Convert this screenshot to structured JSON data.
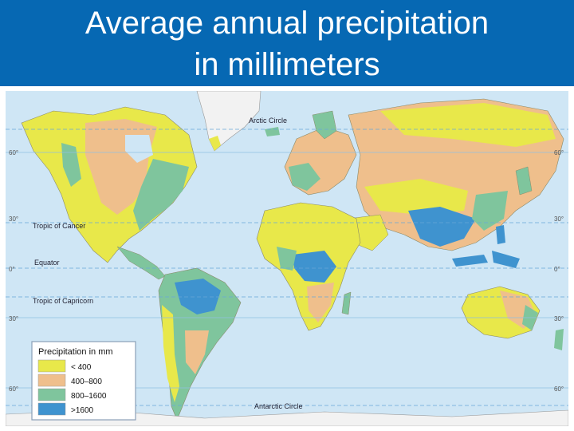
{
  "title": {
    "line1": "Average annual precipitation",
    "line2": "in millimeters"
  },
  "colors": {
    "header": "#0668b3",
    "ocean": "#cfe6f5",
    "under400": "#e8e84a",
    "r400_800": "#efbf8c",
    "r800_1600": "#7fc59d",
    "over1600": "#3f93cf",
    "ice": "#f7f7f7"
  },
  "lines": {
    "arctic": "Arctic Circle",
    "cancer": "Tropic of Cancer",
    "equator": "Equator",
    "capricorn": "Tropic of Capricorn",
    "antarctic": "Antarctic Circle"
  },
  "degrees": {
    "n60": "60°",
    "n30": "30°",
    "eq": "0°",
    "s30": "30°",
    "s60": "60°"
  },
  "legend": {
    "title": "Precipitation in mm",
    "items": [
      {
        "label": "< 400",
        "color": "#e8e84a"
      },
      {
        "label": "400–800",
        "color": "#efbf8c"
      },
      {
        "label": "800–1600",
        "color": "#7fc59d"
      },
      {
        "label": ">1600",
        "color": "#3f93cf"
      }
    ]
  }
}
